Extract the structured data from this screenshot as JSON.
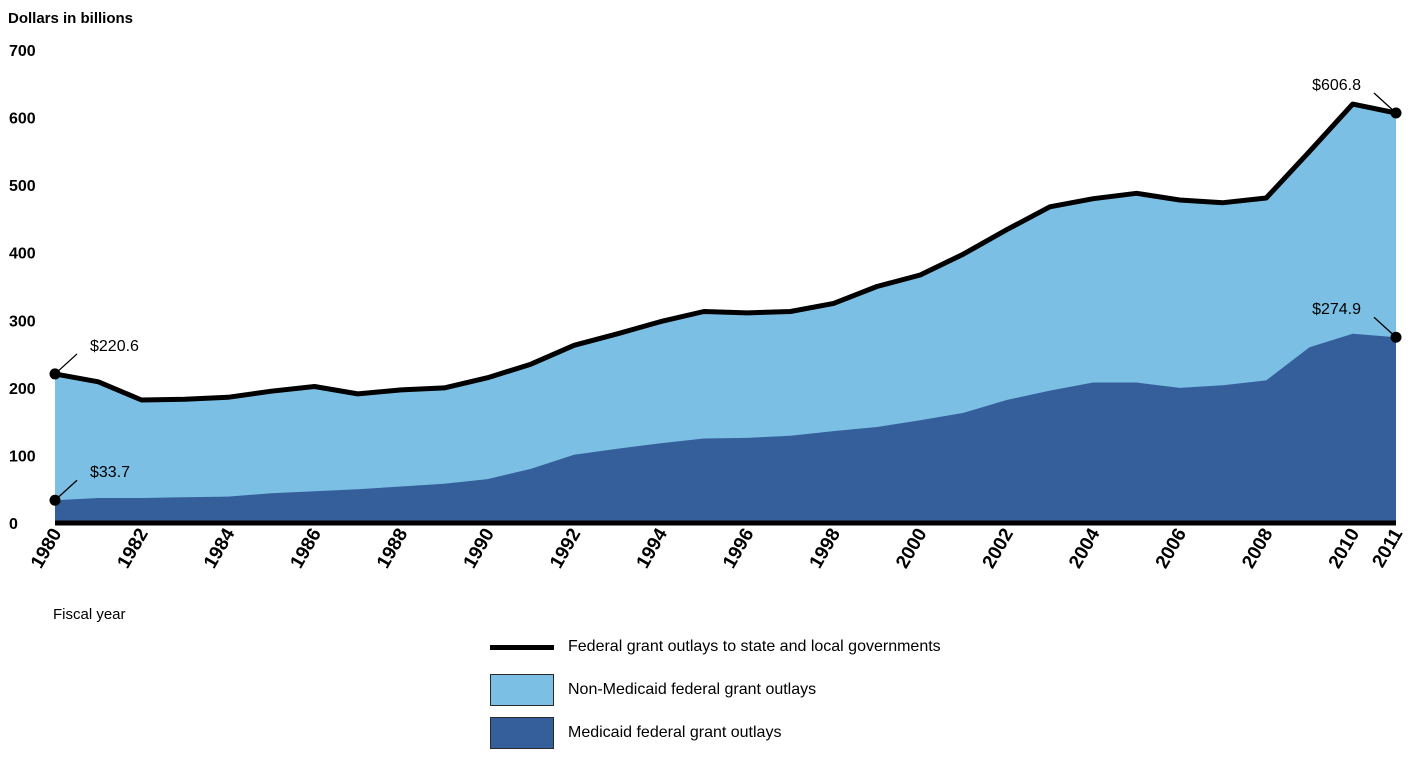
{
  "chart_data": {
    "type": "area",
    "ylabel": "Dollars in billions",
    "xlabel": "Fiscal year",
    "ylim": [
      0,
      700
    ],
    "yticks": [
      0,
      100,
      200,
      300,
      400,
      500,
      600,
      700
    ],
    "x": [
      1980,
      1981,
      1982,
      1983,
      1984,
      1985,
      1986,
      1987,
      1988,
      1989,
      1990,
      1991,
      1992,
      1993,
      1994,
      1995,
      1996,
      1997,
      1998,
      1999,
      2000,
      2001,
      2002,
      2003,
      2004,
      2005,
      2006,
      2007,
      2008,
      2009,
      2010,
      2011
    ],
    "xticks": [
      1980,
      1982,
      1984,
      1986,
      1988,
      1990,
      1992,
      1994,
      1996,
      1998,
      2000,
      2002,
      2004,
      2006,
      2008,
      2010,
      2011
    ],
    "series": [
      {
        "name": "Federal grant outlays to state and local governments",
        "style": "line",
        "color": "#000000",
        "values": [
          220.6,
          209,
          182,
          183,
          186,
          195,
          202,
          191,
          197,
          200,
          215,
          235,
          263,
          280,
          298,
          313,
          311,
          313,
          325,
          350,
          367,
          398,
          434,
          468,
          480,
          488,
          478,
          474,
          481,
          550,
          620,
          606.8
        ]
      },
      {
        "name": "Non-Medicaid federal grant outlays",
        "style": "area",
        "color": "#7bbfe4",
        "values": [
          186.9,
          172,
          145,
          145,
          147,
          151,
          155,
          141,
          143,
          142,
          150,
          159,
          162,
          170,
          180,
          188,
          185,
          184,
          189,
          208,
          215,
          235,
          252,
          272,
          272,
          280,
          278,
          270,
          270,
          290,
          340,
          331.9
        ]
      },
      {
        "name": "Medicaid federal grant outlays",
        "style": "area",
        "color": "#345f9a",
        "values": [
          33.7,
          37,
          37,
          38,
          39,
          44,
          47,
          50,
          54,
          58,
          65,
          80,
          101,
          110,
          118,
          125,
          126,
          129,
          136,
          142,
          152,
          163,
          182,
          196,
          208,
          208,
          200,
          204,
          211,
          260,
          280,
          274.9
        ]
      }
    ],
    "annotations": [
      {
        "series": 0,
        "x": 1980,
        "text": "$220.6"
      },
      {
        "series": 2,
        "x": 1980,
        "text": "$33.7"
      },
      {
        "series": 0,
        "x": 2011,
        "text": "$606.8"
      },
      {
        "series": 2,
        "x": 2011,
        "text": "$274.9"
      }
    ],
    "legend": "bottom"
  }
}
